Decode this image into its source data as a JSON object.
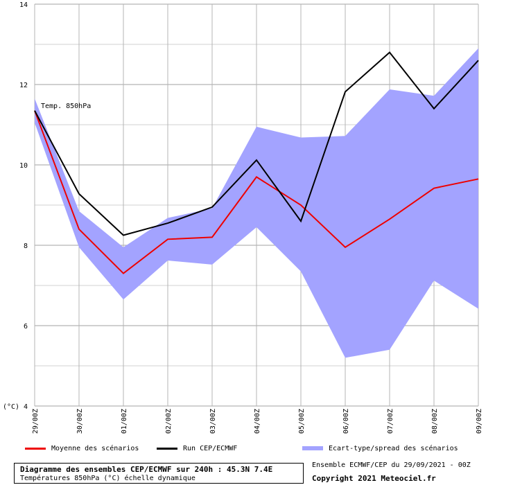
{
  "chart_data": {
    "type": "line",
    "annotation": "Temp. 850hPa",
    "ylabel": "(°C)",
    "ylim": [
      4,
      14
    ],
    "yticks": [
      4,
      6,
      8,
      10,
      12,
      14
    ],
    "categories": [
      "29/00Z",
      "30/00Z",
      "01/00Z",
      "02/00Z",
      "03/00Z",
      "04/00Z",
      "05/00Z",
      "06/00Z",
      "07/00Z",
      "08/00Z",
      "09/00Z"
    ],
    "series": [
      {
        "name": "Moyenne des scénarios",
        "color": "#ee0000",
        "values": [
          11.35,
          8.4,
          7.3,
          8.15,
          8.2,
          9.7,
          9.0,
          7.95,
          8.65,
          9.42,
          9.65
        ]
      },
      {
        "name": "Run CEP/ECMWF",
        "color": "#000000",
        "values": [
          11.35,
          9.28,
          8.25,
          8.55,
          8.95,
          10.12,
          8.6,
          11.82,
          12.8,
          11.4,
          12.6
        ]
      }
    ],
    "band": {
      "name": "Ecart-type/spread des scénarios",
      "color": "#a3a3ff",
      "upper": [
        11.65,
        8.85,
        7.95,
        8.68,
        8.92,
        10.95,
        10.68,
        10.72,
        11.88,
        11.72,
        12.9
      ],
      "lower": [
        11.05,
        7.95,
        6.65,
        7.62,
        7.52,
        8.45,
        7.35,
        5.2,
        5.4,
        7.12,
        6.42
      ]
    },
    "grid": true
  },
  "info": {
    "title": "Diagramme des ensembles CEP/ECMWF sur 240h : 45.3N 7.4E",
    "subtitle": "Températures 850hPa (°C) échelle dynamique",
    "run": "Ensemble ECMWF/CEP du 29/09/2021 - 00Z",
    "copyright": "Copyright 2021 Meteociel.fr"
  }
}
